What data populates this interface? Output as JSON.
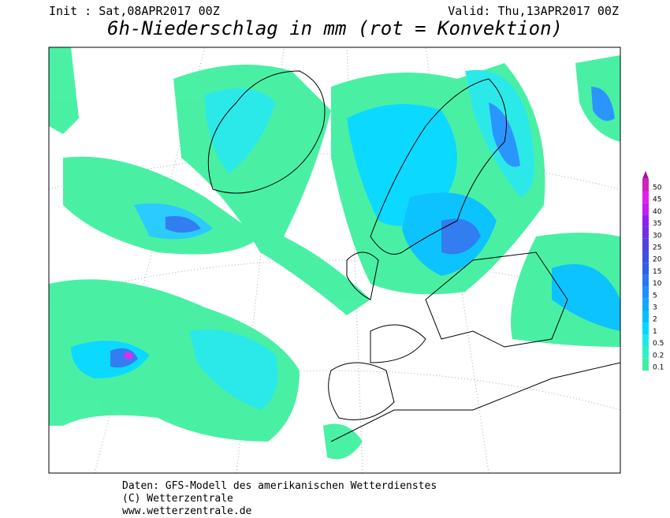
{
  "header": {
    "init": "Init : Sat,08APR2017 00Z",
    "valid": "Valid: Thu,13APR2017 00Z",
    "title": "6h-Niederschlag in mm (rot = Konvektion)"
  },
  "legend": {
    "levels": [
      {
        "label": 0.1,
        "color": "#40f0a0"
      },
      {
        "label": 0.2,
        "color": "#30f0c8"
      },
      {
        "label": 0.5,
        "color": "#20e8e8"
      },
      {
        "label": 1,
        "color": "#00d8ff"
      },
      {
        "label": 2,
        "color": "#00c0ff"
      },
      {
        "label": 3,
        "color": "#10a8ff"
      },
      {
        "label": 5,
        "color": "#2090ff"
      },
      {
        "label": 10,
        "color": "#2878f0"
      },
      {
        "label": 15,
        "color": "#3060e8"
      },
      {
        "label": 20,
        "color": "#4050e0"
      },
      {
        "label": 25,
        "color": "#5040e0"
      },
      {
        "label": 30,
        "color": "#7030e8"
      },
      {
        "label": 35,
        "color": "#9020f0"
      },
      {
        "label": 40,
        "color": "#c020f0"
      },
      {
        "label": 45,
        "color": "#e020e8"
      },
      {
        "label": 50,
        "color": "#d020c0"
      }
    ],
    "top_color": "#a01890"
  },
  "footer": {
    "line1": "Daten: GFS-Modell des amerikanischen Wetterdienstes",
    "line2": "(C) Wetterzentrale",
    "line3": "www.wetterzentrale.de"
  }
}
